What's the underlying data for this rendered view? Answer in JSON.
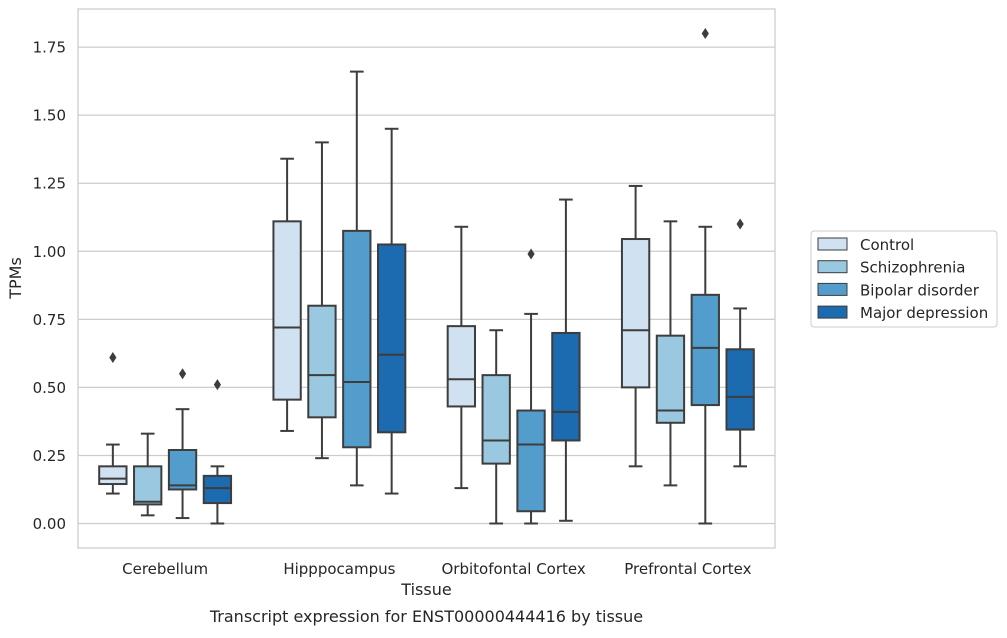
{
  "chart_data": {
    "type": "box",
    "caption": "Transcript expression for ENST00000444416 by tissue",
    "xlabel": "Tissue",
    "ylabel": "TPMs",
    "ylim": [
      -0.09,
      1.89
    ],
    "yticks": [
      0.0,
      0.25,
      0.5,
      0.75,
      1.0,
      1.25,
      1.5,
      1.75
    ],
    "ytick_labels": [
      "0.00",
      "0.25",
      "0.50",
      "0.75",
      "1.00",
      "1.25",
      "1.50",
      "1.75"
    ],
    "grid": "horizontal",
    "legend_placement": "right",
    "categories": [
      "Cerebellum",
      "Hipppocampus",
      "Orbitofontal Cortex",
      "Prefrontal Cortex"
    ],
    "series": [
      {
        "name": "Control",
        "color": "#d0e1f2",
        "boxes": [
          {
            "whislo": 0.11,
            "q1": 0.145,
            "med": 0.165,
            "q3": 0.21,
            "whishi": 0.29,
            "fliers": [
              0.61
            ]
          },
          {
            "whislo": 0.34,
            "q1": 0.455,
            "med": 0.72,
            "q3": 1.11,
            "whishi": 1.34,
            "fliers": []
          },
          {
            "whislo": 0.13,
            "q1": 0.43,
            "med": 0.53,
            "q3": 0.725,
            "whishi": 1.09,
            "fliers": []
          },
          {
            "whislo": 0.21,
            "q1": 0.5,
            "med": 0.71,
            "q3": 1.045,
            "whishi": 1.24,
            "fliers": []
          }
        ]
      },
      {
        "name": "Schizophrenia",
        "color": "#9ac8e0",
        "boxes": [
          {
            "whislo": 0.03,
            "q1": 0.07,
            "med": 0.08,
            "q3": 0.21,
            "whishi": 0.33,
            "fliers": []
          },
          {
            "whislo": 0.24,
            "q1": 0.39,
            "med": 0.545,
            "q3": 0.8,
            "whishi": 1.4,
            "fliers": []
          },
          {
            "whislo": 0.0,
            "q1": 0.22,
            "med": 0.305,
            "q3": 0.545,
            "whishi": 0.71,
            "fliers": []
          },
          {
            "whislo": 0.14,
            "q1": 0.37,
            "med": 0.415,
            "q3": 0.69,
            "whishi": 1.11,
            "fliers": []
          }
        ]
      },
      {
        "name": "Bipolar disorder",
        "color": "#529dcc",
        "boxes": [
          {
            "whislo": 0.02,
            "q1": 0.125,
            "med": 0.14,
            "q3": 0.27,
            "whishi": 0.42,
            "fliers": [
              0.55
            ]
          },
          {
            "whislo": 0.14,
            "q1": 0.28,
            "med": 0.52,
            "q3": 1.075,
            "whishi": 1.66,
            "fliers": []
          },
          {
            "whislo": 0.0,
            "q1": 0.045,
            "med": 0.29,
            "q3": 0.415,
            "whishi": 0.77,
            "fliers": [
              0.99
            ]
          },
          {
            "whislo": 0.0,
            "q1": 0.435,
            "med": 0.645,
            "q3": 0.84,
            "whishi": 1.09,
            "fliers": [
              1.8
            ]
          }
        ]
      },
      {
        "name": "Major depression",
        "color": "#1c6aaf",
        "boxes": [
          {
            "whislo": 0.0,
            "q1": 0.075,
            "med": 0.13,
            "q3": 0.175,
            "whishi": 0.21,
            "fliers": [
              0.51
            ]
          },
          {
            "whislo": 0.11,
            "q1": 0.335,
            "med": 0.62,
            "q3": 1.025,
            "whishi": 1.45,
            "fliers": []
          },
          {
            "whislo": 0.01,
            "q1": 0.305,
            "med": 0.41,
            "q3": 0.7,
            "whishi": 1.19,
            "fliers": []
          },
          {
            "whislo": 0.21,
            "q1": 0.345,
            "med": 0.465,
            "q3": 0.64,
            "whishi": 0.79,
            "fliers": [
              1.1
            ]
          }
        ]
      }
    ]
  }
}
